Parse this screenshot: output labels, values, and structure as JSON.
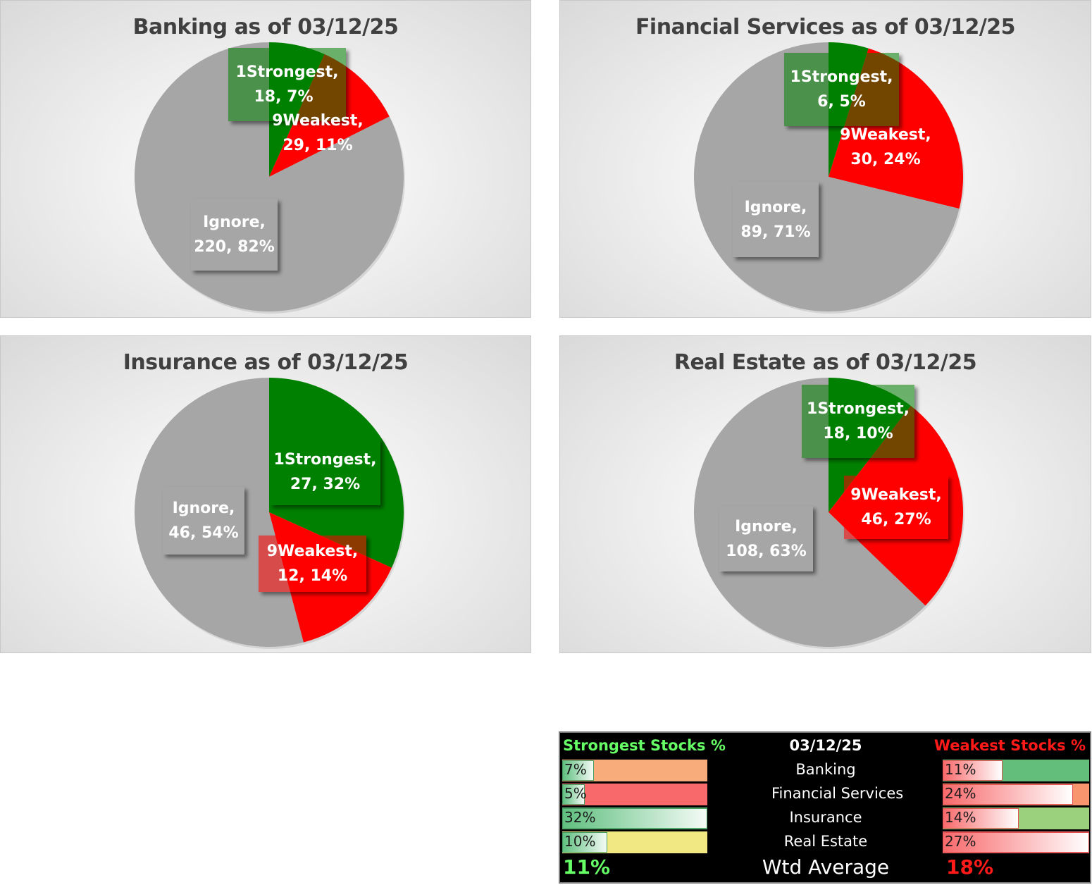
{
  "chart_data": [
    {
      "type": "pie",
      "title": "Banking as of 03/12/25",
      "slices": [
        {
          "name": "1Strongest",
          "value": 18,
          "percent": "7%",
          "color": "#008000",
          "label_line1": "1Strongest,",
          "label_line2": "18, 7%"
        },
        {
          "name": "9Weakest",
          "value": 29,
          "percent": "11%",
          "color": "#ff0000",
          "label_line1": "9Weakest,",
          "label_line2": "29, 11%"
        },
        {
          "name": "Ignore",
          "value": 220,
          "percent": "82%",
          "color": "#a6a6a6",
          "label_line1": "Ignore,",
          "label_line2": "220, 82%"
        }
      ]
    },
    {
      "type": "pie",
      "title": "Financial Services as of 03/12/25",
      "slices": [
        {
          "name": "1Strongest",
          "value": 6,
          "percent": "5%",
          "color": "#008000",
          "label_line1": "1Strongest,",
          "label_line2": "6, 5%"
        },
        {
          "name": "9Weakest",
          "value": 30,
          "percent": "24%",
          "color": "#ff0000",
          "label_line1": "9Weakest,",
          "label_line2": "30, 24%"
        },
        {
          "name": "Ignore",
          "value": 89,
          "percent": "71%",
          "color": "#a6a6a6",
          "label_line1": "Ignore,",
          "label_line2": "89, 71%"
        }
      ]
    },
    {
      "type": "pie",
      "title": "Insurance as of 03/12/25",
      "slices": [
        {
          "name": "1Strongest",
          "value": 27,
          "percent": "32%",
          "color": "#008000",
          "label_line1": "1Strongest,",
          "label_line2": "27, 32%"
        },
        {
          "name": "9Weakest",
          "value": 12,
          "percent": "14%",
          "color": "#ff0000",
          "label_line1": "9Weakest,",
          "label_line2": "12, 14%"
        },
        {
          "name": "Ignore",
          "value": 46,
          "percent": "54%",
          "color": "#a6a6a6",
          "label_line1": "Ignore,",
          "label_line2": "46, 54%"
        }
      ]
    },
    {
      "type": "pie",
      "title": "Real Estate as of 03/12/25",
      "slices": [
        {
          "name": "1Strongest",
          "value": 18,
          "percent": "10%",
          "color": "#008000",
          "label_line1": "1Strongest,",
          "label_line2": "18, 10%"
        },
        {
          "name": "9Weakest",
          "value": 46,
          "percent": "27%",
          "color": "#ff0000",
          "label_line1": "9Weakest,",
          "label_line2": "46, 27%"
        },
        {
          "name": "Ignore",
          "value": 108,
          "percent": "63%",
          "color": "#a6a6a6",
          "label_line1": "Ignore,",
          "label_line2": "108, 63%"
        }
      ]
    }
  ],
  "summary": {
    "strongest_header": "Strongest Stocks %",
    "date": "03/12/25",
    "weakest_header": "Weakest Stocks %",
    "rows": [
      {
        "sector": "Banking",
        "strongest": "7%",
        "strongest_value": 7,
        "strongest_bg": "#f8ac7c",
        "weakest": "11%",
        "weakest_value": 11,
        "weakest_bg": "#63be7b"
      },
      {
        "sector": "Financial Services",
        "strongest": "5%",
        "strongest_value": 5,
        "strongest_bg": "#f8696b",
        "weakest": "24%",
        "weakest_value": 24,
        "weakest_bg": "#f8946e"
      },
      {
        "sector": "Insurance",
        "strongest": "32%",
        "strongest_value": 32,
        "strongest_bg": "#63be7b",
        "weakest": "14%",
        "weakest_value": 14,
        "weakest_bg": "#9bd07c"
      },
      {
        "sector": "Real Estate",
        "strongest": "10%",
        "strongest_value": 10,
        "strongest_bg": "#f1e783",
        "weakest": "27%",
        "weakest_value": 27,
        "weakest_bg": "#f8696b"
      }
    ],
    "bar_max_percent": 32,
    "weakest_bar_max_percent": 27,
    "avg_strongest": "11%",
    "avg_label": "Wtd Average",
    "avg_weakest": "18%"
  }
}
